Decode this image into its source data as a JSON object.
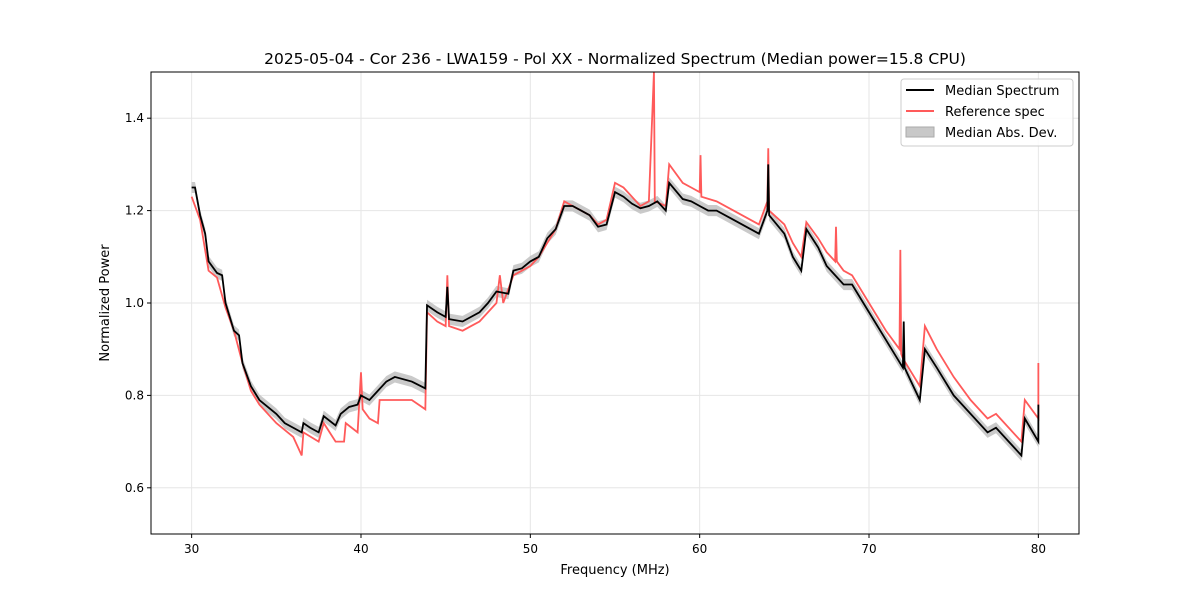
{
  "chart_data": {
    "type": "line",
    "title": "2025-05-04 - Cor 236 - LWA159 - Pol XX - Normalized Spectrum (Median power=15.8 CPU)",
    "xlabel": "Frequency (MHz)",
    "ylabel": "Normalized Power",
    "xlim": [
      27.6,
      82.4
    ],
    "ylim": [
      0.5,
      1.5
    ],
    "xticks": [
      30,
      40,
      50,
      60,
      70,
      80
    ],
    "yticks": [
      0.6,
      0.8,
      1.0,
      1.2,
      1.4
    ],
    "grid": true,
    "legend_position": "top-right",
    "legend": [
      "Median Spectrum",
      "Reference spec",
      "Median Abs. Dev."
    ],
    "colors": {
      "median": "#000000",
      "reference": "#ff5a5a",
      "mad": "#bdbdbd"
    },
    "mad_halfwidth": 0.012,
    "series": [
      {
        "name": "Median Spectrum",
        "points": [
          [
            30,
            1.25
          ],
          [
            30.2,
            1.25
          ],
          [
            30.5,
            1.19
          ],
          [
            30.8,
            1.15
          ],
          [
            31,
            1.09
          ],
          [
            31.5,
            1.065
          ],
          [
            31.8,
            1.06
          ],
          [
            32,
            1.0
          ],
          [
            32.5,
            0.94
          ],
          [
            32.8,
            0.93
          ],
          [
            33,
            0.87
          ],
          [
            33.5,
            0.82
          ],
          [
            34,
            0.79
          ],
          [
            35,
            0.76
          ],
          [
            35.5,
            0.74
          ],
          [
            36,
            0.73
          ],
          [
            36.5,
            0.72
          ],
          [
            36.6,
            0.74
          ],
          [
            37,
            0.73
          ],
          [
            37.5,
            0.72
          ],
          [
            37.8,
            0.755
          ],
          [
            38.5,
            0.735
          ],
          [
            38.8,
            0.76
          ],
          [
            39.3,
            0.775
          ],
          [
            39.8,
            0.78
          ],
          [
            40,
            0.8
          ],
          [
            40.5,
            0.79
          ],
          [
            41,
            0.81
          ],
          [
            41.5,
            0.83
          ],
          [
            42,
            0.84
          ],
          [
            43,
            0.83
          ],
          [
            43.8,
            0.815
          ],
          [
            43.9,
            0.995
          ],
          [
            44.5,
            0.98
          ],
          [
            45,
            0.97
          ],
          [
            45.1,
            1.035
          ],
          [
            45.2,
            0.965
          ],
          [
            46,
            0.96
          ],
          [
            46.5,
            0.97
          ],
          [
            47,
            0.98
          ],
          [
            47.5,
            1.0
          ],
          [
            48,
            1.025
          ],
          [
            48.7,
            1.02
          ],
          [
            49,
            1.07
          ],
          [
            49.5,
            1.075
          ],
          [
            50,
            1.09
          ],
          [
            50.5,
            1.1
          ],
          [
            51,
            1.14
          ],
          [
            51.5,
            1.16
          ],
          [
            52,
            1.21
          ],
          [
            52.5,
            1.21
          ],
          [
            53,
            1.2
          ],
          [
            53.5,
            1.19
          ],
          [
            54,
            1.165
          ],
          [
            54.5,
            1.17
          ],
          [
            55,
            1.24
          ],
          [
            55.5,
            1.23
          ],
          [
            56,
            1.215
          ],
          [
            56.5,
            1.205
          ],
          [
            57,
            1.21
          ],
          [
            57.5,
            1.22
          ],
          [
            58,
            1.2
          ],
          [
            58.2,
            1.26
          ],
          [
            59,
            1.225
          ],
          [
            59.5,
            1.22
          ],
          [
            60,
            1.21
          ],
          [
            60.5,
            1.2
          ],
          [
            61,
            1.2
          ],
          [
            62,
            1.18
          ],
          [
            63,
            1.16
          ],
          [
            63.5,
            1.15
          ],
          [
            64,
            1.2
          ],
          [
            64.05,
            1.3
          ],
          [
            64.1,
            1.19
          ],
          [
            65,
            1.15
          ],
          [
            65.5,
            1.1
          ],
          [
            66,
            1.07
          ],
          [
            66.3,
            1.16
          ],
          [
            67,
            1.12
          ],
          [
            67.5,
            1.08
          ],
          [
            68,
            1.06
          ],
          [
            68.5,
            1.04
          ],
          [
            69,
            1.04
          ],
          [
            70,
            0.98
          ],
          [
            71,
            0.92
          ],
          [
            72,
            0.86
          ],
          [
            72.05,
            0.96
          ],
          [
            72.1,
            0.86
          ],
          [
            73,
            0.79
          ],
          [
            73.3,
            0.9
          ],
          [
            74,
            0.86
          ],
          [
            75,
            0.8
          ],
          [
            76,
            0.76
          ],
          [
            77,
            0.72
          ],
          [
            77.5,
            0.73
          ],
          [
            78,
            0.71
          ],
          [
            79,
            0.67
          ],
          [
            79.2,
            0.75
          ],
          [
            80,
            0.7
          ],
          [
            80,
            0.78
          ]
        ]
      },
      {
        "name": "Reference spec",
        "points": [
          [
            30,
            1.23
          ],
          [
            30.5,
            1.18
          ],
          [
            31,
            1.07
          ],
          [
            31.5,
            1.055
          ],
          [
            32,
            0.99
          ],
          [
            32.5,
            0.94
          ],
          [
            33,
            0.87
          ],
          [
            33.5,
            0.81
          ],
          [
            34,
            0.78
          ],
          [
            35,
            0.74
          ],
          [
            36,
            0.71
          ],
          [
            36.5,
            0.67
          ],
          [
            36.6,
            0.72
          ],
          [
            37.5,
            0.7
          ],
          [
            37.8,
            0.74
          ],
          [
            38.5,
            0.7
          ],
          [
            39,
            0.7
          ],
          [
            39.1,
            0.74
          ],
          [
            39.8,
            0.72
          ],
          [
            40,
            0.85
          ],
          [
            40.1,
            0.77
          ],
          [
            40.5,
            0.75
          ],
          [
            41,
            0.74
          ],
          [
            41.1,
            0.79
          ],
          [
            42,
            0.79
          ],
          [
            43,
            0.79
          ],
          [
            43.8,
            0.77
          ],
          [
            43.9,
            0.98
          ],
          [
            44.5,
            0.96
          ],
          [
            45,
            0.95
          ],
          [
            45.1,
            1.06
          ],
          [
            45.2,
            0.95
          ],
          [
            46,
            0.94
          ],
          [
            46.5,
            0.95
          ],
          [
            47,
            0.96
          ],
          [
            47.5,
            0.98
          ],
          [
            48,
            1.0
          ],
          [
            48.2,
            1.06
          ],
          [
            48.4,
            1.0
          ],
          [
            49,
            1.06
          ],
          [
            49.5,
            1.07
          ],
          [
            50,
            1.08
          ],
          [
            50.5,
            1.1
          ],
          [
            51,
            1.13
          ],
          [
            51.5,
            1.16
          ],
          [
            52,
            1.22
          ],
          [
            52.5,
            1.21
          ],
          [
            53,
            1.2
          ],
          [
            53.5,
            1.19
          ],
          [
            54,
            1.17
          ],
          [
            54.5,
            1.18
          ],
          [
            55,
            1.26
          ],
          [
            55.5,
            1.25
          ],
          [
            56,
            1.23
          ],
          [
            56.5,
            1.21
          ],
          [
            57,
            1.22
          ],
          [
            57.3,
            1.5
          ],
          [
            57.35,
            1.22
          ],
          [
            58,
            1.21
          ],
          [
            58.2,
            1.3
          ],
          [
            59,
            1.26
          ],
          [
            59.5,
            1.25
          ],
          [
            60,
            1.24
          ],
          [
            60.05,
            1.32
          ],
          [
            60.1,
            1.23
          ],
          [
            61,
            1.22
          ],
          [
            62,
            1.2
          ],
          [
            63,
            1.18
          ],
          [
            63.5,
            1.17
          ],
          [
            64,
            1.22
          ],
          [
            64.05,
            1.335
          ],
          [
            64.1,
            1.2
          ],
          [
            65,
            1.17
          ],
          [
            65.5,
            1.13
          ],
          [
            66,
            1.1
          ],
          [
            66.3,
            1.175
          ],
          [
            67,
            1.14
          ],
          [
            67.5,
            1.11
          ],
          [
            68,
            1.09
          ],
          [
            68.05,
            1.165
          ],
          [
            68.1,
            1.09
          ],
          [
            68.5,
            1.07
          ],
          [
            69,
            1.06
          ],
          [
            70,
            1.0
          ],
          [
            71,
            0.94
          ],
          [
            71.8,
            0.9
          ],
          [
            71.85,
            1.115
          ],
          [
            71.9,
            0.89
          ],
          [
            72,
            0.88
          ],
          [
            73,
            0.82
          ],
          [
            73.3,
            0.95
          ],
          [
            74,
            0.9
          ],
          [
            75,
            0.84
          ],
          [
            76,
            0.79
          ],
          [
            77,
            0.75
          ],
          [
            77.5,
            0.76
          ],
          [
            78,
            0.74
          ],
          [
            79,
            0.7
          ],
          [
            79.2,
            0.79
          ],
          [
            80,
            0.75
          ],
          [
            80,
            0.87
          ]
        ]
      }
    ]
  }
}
